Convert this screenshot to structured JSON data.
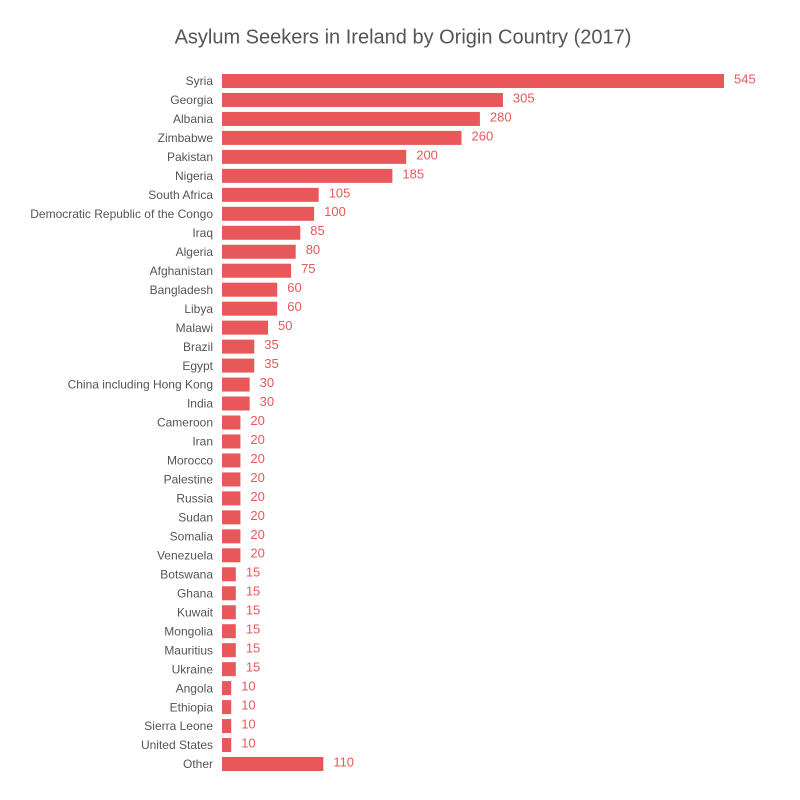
{
  "chart_data": {
    "type": "bar",
    "orientation": "horizontal",
    "title": "Asylum Seekers in Ireland by Origin Country (2017)",
    "categories": [
      "Syria",
      "Georgia",
      "Albania",
      "Zimbabwe",
      "Pakistan",
      "Nigeria",
      "South Africa",
      "Democratic Republic of the Congo",
      "Iraq",
      "Algeria",
      "Afghanistan",
      "Bangladesh",
      "Libya",
      "Malawi",
      "Brazil",
      "Egypt",
      "China including Hong Kong",
      "India",
      "Cameroon",
      "Iran",
      "Morocco",
      "Palestine",
      "Russia",
      "Sudan",
      "Somalia",
      "Venezuela",
      "Botswana",
      "Ghana",
      "Kuwait",
      "Mongolia",
      "Mauritius",
      "Ukraine",
      "Angola",
      "Ethiopia",
      "Sierra Leone",
      "United States",
      "Other"
    ],
    "values": [
      545,
      305,
      280,
      260,
      200,
      185,
      105,
      100,
      85,
      80,
      75,
      60,
      60,
      50,
      35,
      35,
      30,
      30,
      20,
      20,
      20,
      20,
      20,
      20,
      20,
      20,
      15,
      15,
      15,
      15,
      15,
      15,
      10,
      10,
      10,
      10,
      110
    ],
    "color": "#e8585a"
  }
}
